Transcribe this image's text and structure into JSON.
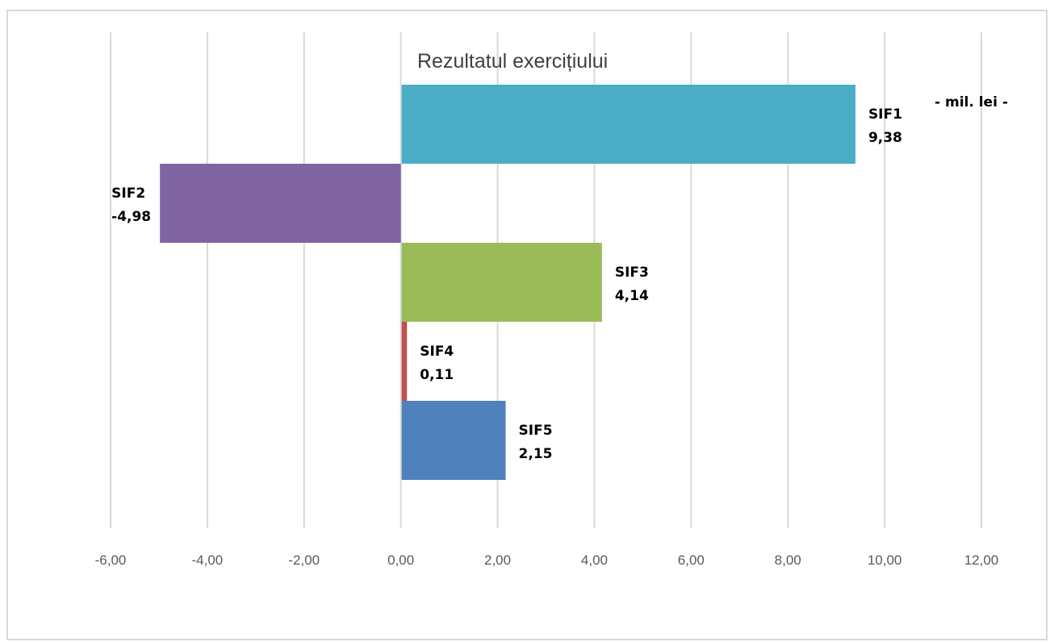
{
  "chart_data": {
    "type": "bar",
    "orientation": "horizontal",
    "title": "Rezultatul exercițiului",
    "unit_note": "- mil. lei -",
    "categories": [
      "SIF1",
      "SIF2",
      "SIF3",
      "SIF4",
      "SIF5"
    ],
    "values": [
      9.38,
      -4.98,
      4.14,
      0.11,
      2.15
    ],
    "data_labels": [
      "9,38",
      "-4,98",
      "4,14",
      "0,11",
      "2,15"
    ],
    "colors": [
      "#4BACC6",
      "#8064A2",
      "#9BBB59",
      "#C0504D",
      "#4F81BD"
    ],
    "xlim": [
      -6,
      12
    ],
    "x_ticks": [
      -6,
      -4,
      -2,
      0,
      2,
      4,
      6,
      8,
      10,
      12
    ],
    "x_tick_labels": [
      "-6,00",
      "-4,00",
      "-2,00",
      "0,00",
      "2,00",
      "4,00",
      "6,00",
      "8,00",
      "10,00",
      "12,00"
    ],
    "grid": true,
    "legend": "none"
  }
}
